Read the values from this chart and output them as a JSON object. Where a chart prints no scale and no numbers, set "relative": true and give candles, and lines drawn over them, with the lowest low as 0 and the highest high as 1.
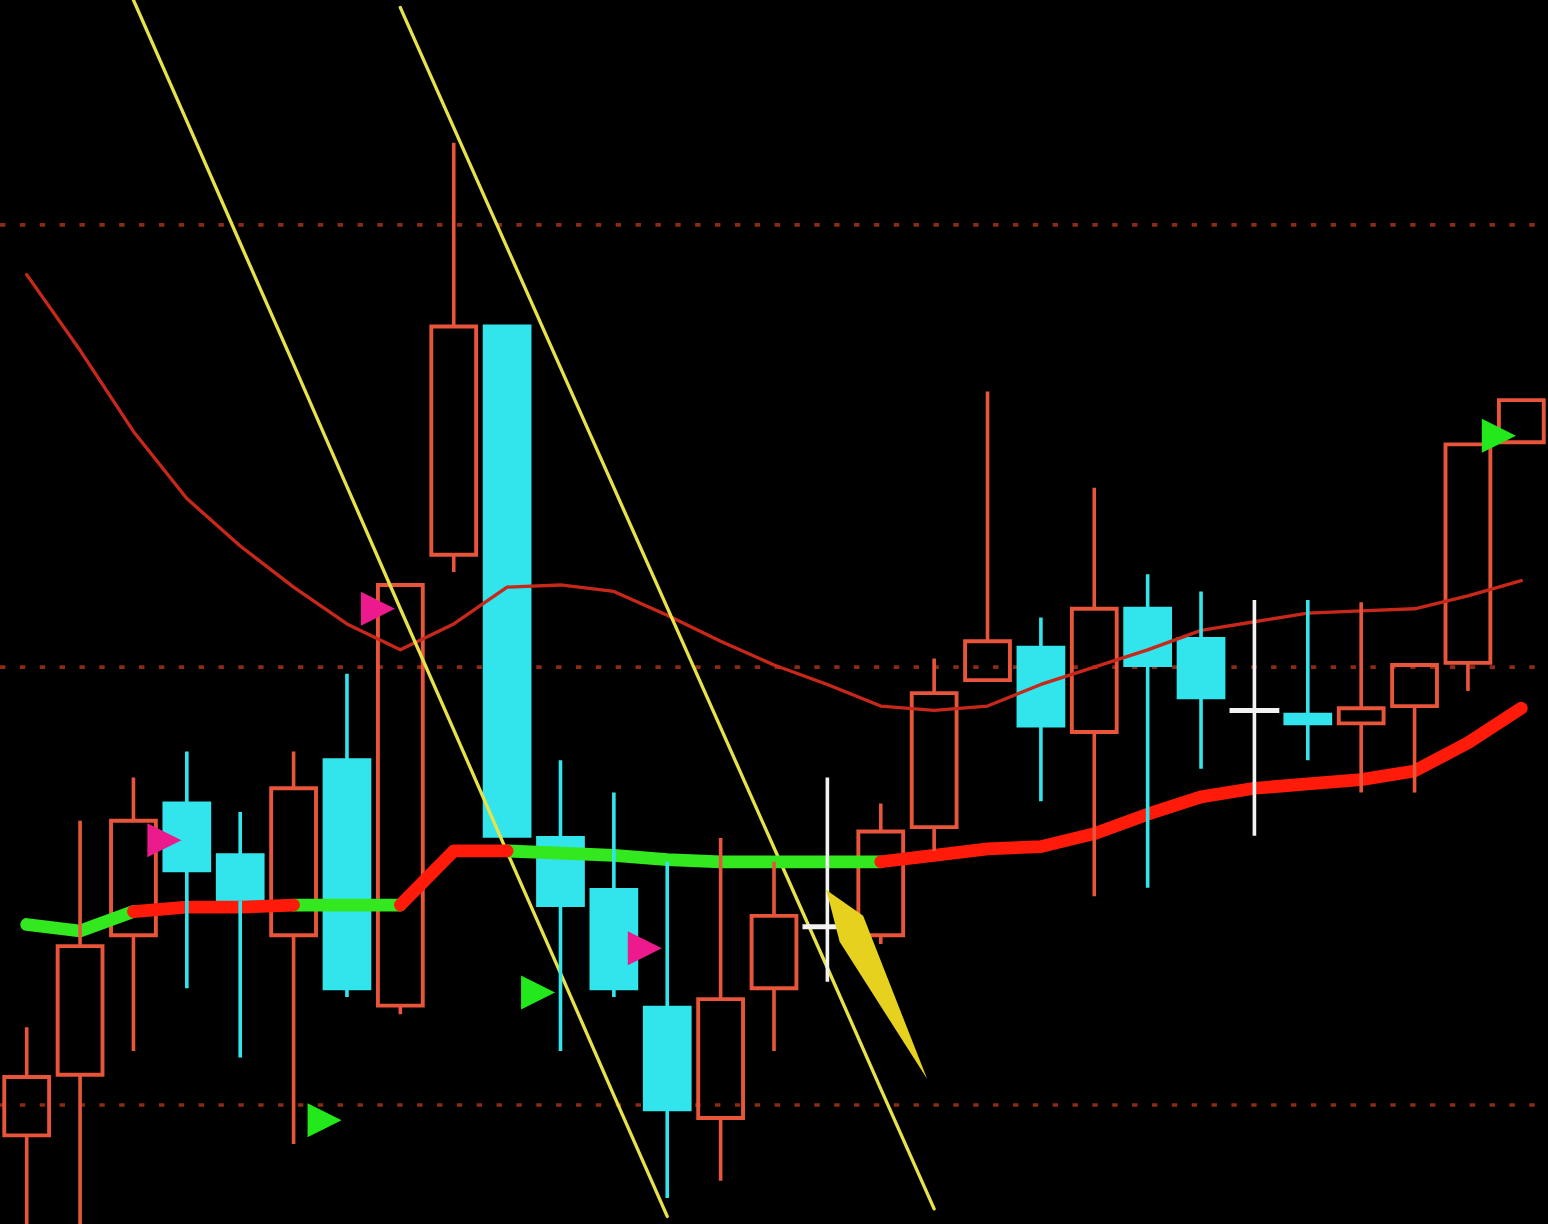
{
  "chart_data": {
    "type": "candlestick",
    "relative": true,
    "tick_labels": false,
    "categories": [
      null,
      null,
      null,
      null,
      null,
      null,
      null,
      null,
      null,
      null,
      null,
      null,
      null,
      null,
      null,
      null,
      null,
      null,
      null,
      null,
      null,
      null,
      null,
      null,
      null,
      null,
      null,
      null,
      null
    ],
    "ohlc": [
      [
        0.082,
        0.182,
        0.0,
        0.136
      ],
      [
        0.138,
        0.373,
        0.0,
        0.257
      ],
      [
        0.267,
        0.413,
        0.16,
        0.373
      ],
      [
        0.389,
        0.437,
        0.218,
        0.327
      ],
      [
        0.341,
        0.381,
        0.154,
        0.299
      ],
      [
        0.267,
        0.437,
        0.074,
        0.403
      ],
      [
        0.429,
        0.509,
        0.21,
        0.218
      ],
      [
        0.202,
        0.591,
        0.194,
        0.591
      ],
      [
        0.619,
        1.0,
        0.603,
        0.83
      ],
      [
        0.83,
        0.83,
        0.359,
        0.359
      ],
      [
        0.357,
        0.429,
        0.16,
        0.295
      ],
      [
        0.309,
        0.399,
        0.21,
        0.218
      ],
      [
        0.2,
        0.335,
        0.024,
        0.106
      ],
      [
        0.098,
        0.357,
        0.04,
        0.208
      ],
      [
        0.218,
        0.335,
        0.16,
        0.285
      ],
      [
        0.275,
        0.413,
        0.224,
        0.275
      ],
      [
        0.267,
        0.389,
        0.259,
        0.363
      ],
      [
        0.367,
        0.523,
        0.345,
        0.491
      ],
      [
        0.503,
        0.77,
        0.503,
        0.539
      ],
      [
        0.533,
        0.561,
        0.391,
        0.461
      ],
      [
        0.455,
        0.681,
        0.303,
        0.569
      ],
      [
        0.569,
        0.601,
        0.311,
        0.517
      ],
      [
        0.541,
        0.585,
        0.421,
        0.487
      ],
      [
        0.475,
        0.577,
        0.359,
        0.475
      ],
      [
        0.471,
        0.577,
        0.429,
        0.463
      ],
      [
        0.463,
        0.575,
        0.399,
        0.477
      ],
      [
        0.479,
        0.517,
        0.399,
        0.517
      ],
      [
        0.519,
        0.721,
        0.493,
        0.721
      ],
      [
        0.723,
        0.762,
        0.723,
        0.762
      ]
    ],
    "colors": [
      "#e8553a",
      "#e8553a",
      "#e8553a",
      "#32e4ec",
      "#32e4ec",
      "#e8553a",
      "#32e4ec",
      "#e8553a",
      "#e8553a",
      "#32e4ec",
      "#32e4ec",
      "#32e4ec",
      "#32e4ec",
      "#e8553a",
      "#e8553a",
      "#f2f2f2",
      "#e8553a",
      "#e8553a",
      "#e8553a",
      "#32e4ec",
      "#e8553a",
      "#32e4ec",
      "#32e4ec",
      "#f2f2f2",
      "#32e4ec",
      "#e8553a",
      "#e8553a",
      "#e8553a",
      "#e8553a"
    ],
    "series": [
      {
        "type": "line",
        "color": "#c8281a",
        "values": [
          0.878,
          0.808,
          0.733,
          0.671,
          0.627,
          0.589,
          0.555,
          0.531,
          0.555,
          0.589,
          0.591,
          0.585,
          0.563,
          0.539,
          0.517,
          0.499,
          0.479,
          0.475,
          0.479,
          0.499,
          0.515,
          0.531,
          0.549,
          0.557,
          0.565,
          0.567,
          0.569,
          0.581,
          0.595
        ]
      },
      {
        "type": "line",
        "color": "#33e81f",
        "values": [
          0.277,
          0.271,
          0.289,
          null,
          null,
          0.295,
          0.295,
          0.295,
          null,
          0.345,
          0.343,
          0.341,
          0.337,
          0.335,
          0.335,
          0.335,
          0.335,
          null,
          null,
          null,
          null,
          null,
          null,
          null,
          null,
          null,
          null,
          null,
          null
        ]
      },
      {
        "type": "line",
        "color": "#ff1a0a",
        "values": [
          null,
          null,
          0.289,
          0.293,
          0.293,
          0.295,
          null,
          0.295,
          0.345,
          0.345,
          null,
          null,
          null,
          null,
          null,
          null,
          0.335,
          0.341,
          0.347,
          0.349,
          0.361,
          0.379,
          0.395,
          0.403,
          0.407,
          0.411,
          0.419,
          0.445,
          0.477
        ]
      },
      {
        "type": "line",
        "color": "#e8e24a",
        "values": [
          null,
          null,
          1.132,
          1.02,
          0.907,
          0.795,
          0.682,
          0.569,
          0.457,
          0.344,
          0.232,
          0.119,
          0.007,
          null,
          null,
          null,
          null,
          null,
          null,
          null,
          null,
          null,
          null,
          null,
          null,
          null,
          null,
          null,
          null
        ]
      },
      {
        "type": "line",
        "color": "#e8e24a",
        "values": [
          null,
          null,
          null,
          null,
          null,
          null,
          null,
          1.125,
          1.014,
          0.903,
          0.792,
          0.681,
          0.57,
          0.459,
          0.348,
          0.237,
          0.125,
          0.014,
          null,
          null,
          null,
          null,
          null,
          null,
          null,
          null,
          null,
          null,
          null
        ]
      },
      {
        "type": "scatter",
        "marker": "triangle",
        "color": "#ec1a8c",
        "values": [
          null,
          null,
          null,
          0.355,
          null,
          null,
          null,
          0.569,
          null,
          null,
          null,
          null,
          0.255,
          null,
          null,
          null,
          null,
          null,
          null,
          null,
          null,
          null,
          null,
          null,
          null,
          null,
          null,
          null,
          null
        ]
      },
      {
        "type": "scatter",
        "marker": "triangle",
        "color": "#22e81c",
        "values": [
          null,
          null,
          null,
          null,
          null,
          null,
          0.096,
          null,
          null,
          null,
          0.214,
          null,
          null,
          null,
          null,
          null,
          null,
          null,
          null,
          null,
          null,
          null,
          null,
          null,
          null,
          null,
          null,
          null,
          0.729
        ]
      }
    ],
    "ref_lines": [
      {
        "axis": "y",
        "value": 0.924,
        "color": "#8a2b16",
        "line_style": "dotted"
      },
      {
        "axis": "y",
        "value": 0.515,
        "color": "#8a2b16",
        "line_style": "dotted"
      },
      {
        "axis": "y",
        "value": 0.11,
        "color": "#8a2b16",
        "line_style": "dotted"
      }
    ]
  }
}
